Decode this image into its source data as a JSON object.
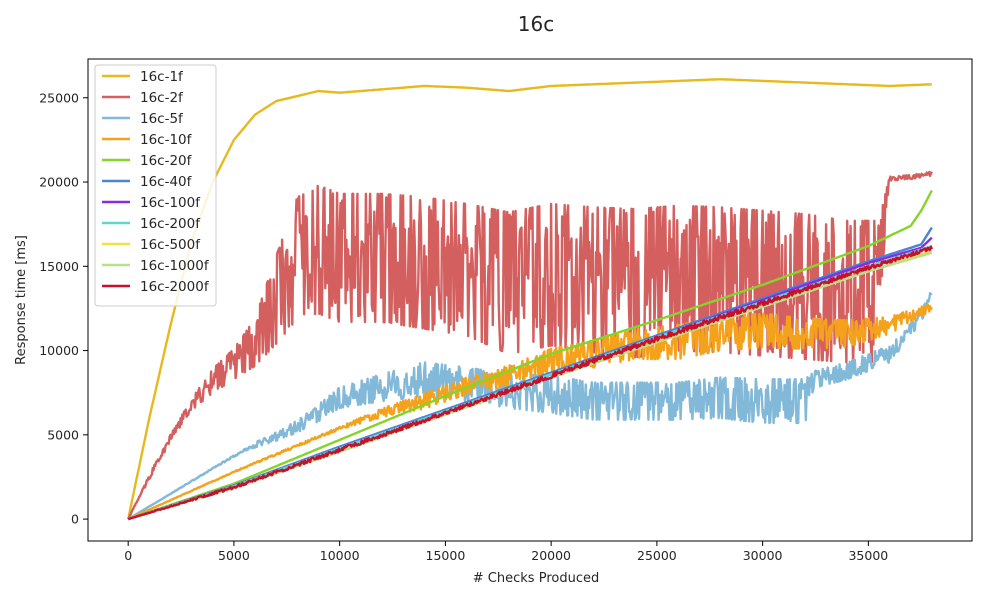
{
  "chart_data": {
    "type": "line",
    "title": "16c",
    "xlabel": "# Checks Produced",
    "ylabel": "Response time [ms]",
    "xlim": [
      -1900,
      39900
    ],
    "ylim": [
      -1300,
      27300
    ],
    "xticks": [
      0,
      5000,
      10000,
      15000,
      20000,
      25000,
      30000,
      35000
    ],
    "yticks": [
      0,
      5000,
      10000,
      15000,
      20000,
      25000
    ],
    "grid": false,
    "legend_position": "top-left",
    "series": [
      {
        "name": "16c-1f",
        "color": "#E6B91E",
        "kind": "smooth",
        "x": [
          0,
          1000,
          2000,
          3000,
          4000,
          5000,
          6000,
          7000,
          8000,
          9000,
          10000,
          12000,
          14000,
          16000,
          18000,
          20000,
          22000,
          24000,
          26000,
          28000,
          30000,
          32000,
          34000,
          36000,
          38000
        ],
        "y": [
          0,
          6000,
          11500,
          16500,
          20000,
          22500,
          24000,
          24800,
          25100,
          25400,
          25300,
          25500,
          25700,
          25600,
          25400,
          25700,
          25800,
          25900,
          26000,
          26100,
          26000,
          25900,
          25800,
          25700,
          25800
        ]
      },
      {
        "name": "16c-2f",
        "color": "#D45F5F",
        "kind": "noisy",
        "x": [
          0,
          1000,
          2000,
          3000,
          4000,
          5000,
          6000,
          7000,
          8000,
          9000,
          10000,
          12000,
          14000,
          16000,
          18000,
          20000,
          22000,
          24000,
          26000,
          28000,
          30000,
          32000,
          34000,
          35500,
          36000,
          37000,
          38000
        ],
        "y": [
          0,
          2500,
          4800,
          6800,
          8200,
          9200,
          10500,
          13000,
          15500,
          16000,
          15500,
          15500,
          15200,
          14800,
          14000,
          14500,
          14200,
          14000,
          14300,
          14200,
          14000,
          13800,
          13500,
          13500,
          20200,
          20300,
          20500
        ],
        "amp": [
          0,
          150,
          200,
          350,
          700,
          900,
          1400,
          2600,
          3600,
          3800,
          3800,
          3800,
          3900,
          3900,
          4200,
          4200,
          4300,
          4400,
          4300,
          4300,
          4300,
          4300,
          4200,
          4200,
          120,
          120,
          120
        ]
      },
      {
        "name": "16c-5f",
        "color": "#82B8D8",
        "kind": "noisy",
        "x": [
          0,
          2000,
          4000,
          5500,
          6000,
          7000,
          8000,
          9000,
          10000,
          12000,
          14000,
          16000,
          18000,
          20000,
          22000,
          24000,
          26000,
          28000,
          30000,
          32000,
          32500,
          34000,
          36000,
          37500,
          38000
        ],
        "y": [
          0,
          1500,
          3000,
          4100,
          4400,
          4900,
          5500,
          6300,
          7200,
          7800,
          8300,
          8000,
          7600,
          7400,
          7000,
          7000,
          7000,
          7200,
          7000,
          7000,
          8300,
          8800,
          9800,
          12000,
          13500
        ],
        "amp": [
          0,
          20,
          30,
          60,
          150,
          250,
          350,
          500,
          600,
          800,
          1000,
          1000,
          1000,
          1100,
          1100,
          1100,
          1100,
          1200,
          1300,
          1300,
          500,
          500,
          500,
          300,
          150
        ]
      },
      {
        "name": "16c-10f",
        "color": "#F4A21C",
        "kind": "noisy",
        "x": [
          0,
          5000,
          10000,
          12000,
          14000,
          16000,
          18000,
          20000,
          22000,
          24000,
          26000,
          28000,
          30000,
          32000,
          34000,
          36000,
          38000
        ],
        "y": [
          0,
          2800,
          5400,
          6300,
          7000,
          7900,
          8500,
          9400,
          9800,
          10400,
          10500,
          11000,
          11200,
          11000,
          11000,
          11500,
          12600
        ],
        "amp": [
          0,
          30,
          80,
          250,
          450,
          500,
          600,
          700,
          800,
          900,
          1000,
          1000,
          1000,
          900,
          800,
          500,
          200
        ]
      },
      {
        "name": "16c-20f",
        "color": "#84D42A",
        "kind": "smooth",
        "x": [
          0,
          5000,
          10000,
          15000,
          20000,
          25000,
          30000,
          35000,
          37000,
          37500,
          38000
        ],
        "y": [
          0,
          2100,
          4700,
          7300,
          9800,
          11800,
          13900,
          16200,
          17400,
          18300,
          19500
        ]
      },
      {
        "name": "16c-40f",
        "color": "#4A84D8",
        "kind": "smooth",
        "x": [
          0,
          5000,
          10000,
          15000,
          20000,
          25000,
          30000,
          35000,
          37500,
          38000
        ],
        "y": [
          0,
          2000,
          4300,
          6500,
          8700,
          10900,
          13100,
          15300,
          16300,
          17300
        ]
      },
      {
        "name": "16c-100f",
        "color": "#8A2BE2",
        "kind": "smooth",
        "x": [
          0,
          5000,
          10000,
          15000,
          20000,
          25000,
          30000,
          35000,
          37500,
          38000
        ],
        "y": [
          0,
          1950,
          4200,
          6400,
          8600,
          10800,
          13000,
          15200,
          16100,
          16700
        ]
      },
      {
        "name": "16c-200f",
        "color": "#5ED8CC",
        "kind": "smooth",
        "x": [
          0,
          5000,
          10000,
          15000,
          20000,
          25000,
          30000,
          35000,
          38000
        ],
        "y": [
          0,
          1950,
          4200,
          6400,
          8600,
          10800,
          12900,
          15000,
          16200
        ]
      },
      {
        "name": "16c-500f",
        "color": "#F0E040",
        "kind": "smooth",
        "x": [
          0,
          5000,
          10000,
          15000,
          20000,
          25000,
          30000,
          35000,
          38000
        ],
        "y": [
          0,
          1850,
          4000,
          6200,
          8400,
          10500,
          12600,
          14700,
          15900
        ]
      },
      {
        "name": "16c-1000f",
        "color": "#B8E08A",
        "kind": "smooth",
        "x": [
          0,
          5000,
          10000,
          15000,
          20000,
          25000,
          30000,
          35000,
          38000
        ],
        "y": [
          0,
          1850,
          4000,
          6200,
          8400,
          10500,
          12600,
          14700,
          15800
        ]
      },
      {
        "name": "16c-2000f",
        "color": "#C8102E",
        "kind": "noisy",
        "x": [
          0,
          5000,
          10000,
          15000,
          20000,
          25000,
          30000,
          35000,
          38000
        ],
        "y": [
          0,
          1900,
          4100,
          6300,
          8500,
          10700,
          12800,
          14900,
          16100
        ],
        "amp": [
          0,
          80,
          100,
          100,
          120,
          120,
          120,
          100,
          80
        ]
      }
    ]
  }
}
